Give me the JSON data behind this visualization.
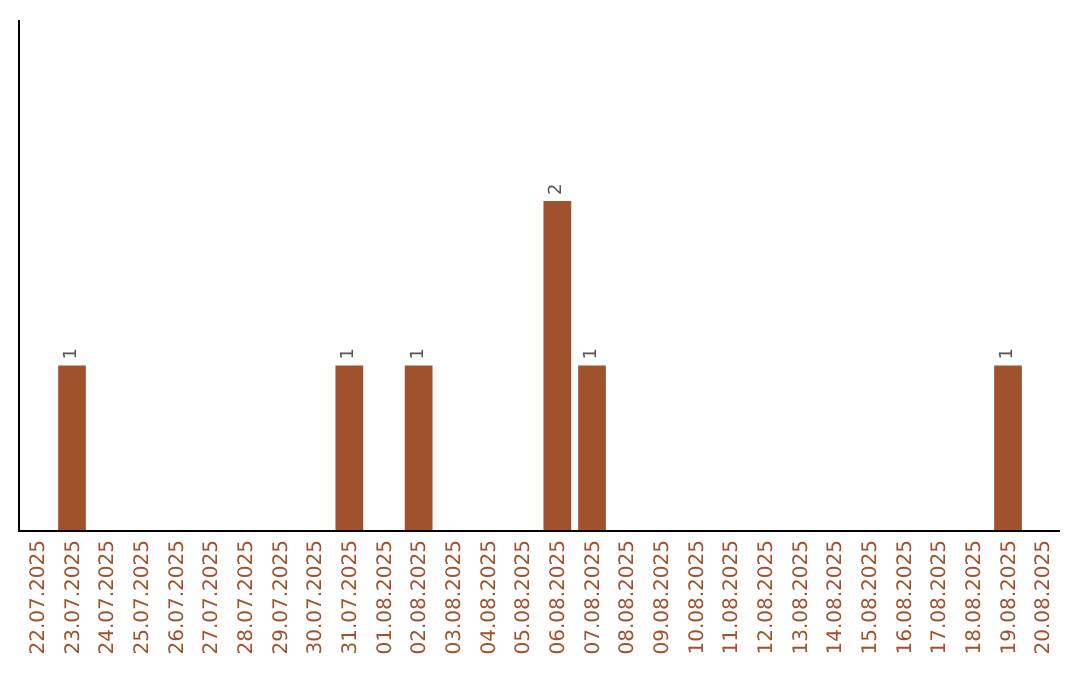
{
  "chart_data": {
    "type": "bar",
    "categories": [
      "22.07.2025",
      "23.07.2025",
      "24.07.2025",
      "25.07.2025",
      "26.07.2025",
      "27.07.2025",
      "28.07.2025",
      "29.07.2025",
      "30.07.2025",
      "31.07.2025",
      "01.08.2025",
      "02.08.2025",
      "03.08.2025",
      "04.08.2025",
      "05.08.2025",
      "06.08.2025",
      "07.08.2025",
      "08.08.2025",
      "09.08.2025",
      "10.08.2025",
      "11.08.2025",
      "12.08.2025",
      "13.08.2025",
      "14.08.2025",
      "15.08.2025",
      "16.08.2025",
      "17.08.2025",
      "18.08.2025",
      "19.08.2025",
      "20.08.2025"
    ],
    "values": [
      0,
      1,
      0,
      0,
      0,
      0,
      0,
      0,
      0,
      1,
      0,
      1,
      0,
      0,
      0,
      2,
      1,
      0,
      0,
      0,
      0,
      0,
      0,
      0,
      0,
      0,
      0,
      0,
      1,
      0
    ],
    "value_labels": [
      null,
      "1",
      null,
      null,
      null,
      null,
      null,
      null,
      null,
      "1",
      null,
      "1",
      null,
      null,
      null,
      "2",
      "1",
      null,
      null,
      null,
      null,
      null,
      null,
      null,
      null,
      null,
      null,
      null,
      "1",
      null
    ],
    "color": "#a0522d",
    "ylim": [
      0,
      3.1
    ],
    "tick_labels": "x"
  }
}
